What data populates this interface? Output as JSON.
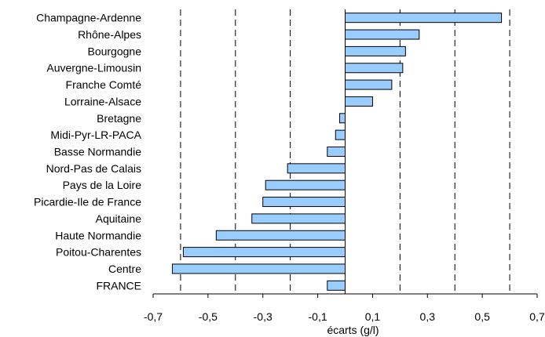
{
  "chart_data": {
    "type": "bar",
    "orientation": "horizontal",
    "categories": [
      "Champagne-Ardenne",
      "Rhône-Alpes",
      "Bourgogne",
      "Auvergne-Limousin",
      "Franche Comté",
      "Lorraine-Alsace",
      "Bretagne",
      "Midi-Pyr-LR-PACA",
      "Basse Normandie",
      "Nord-Pas de Calais",
      "Pays de la Loire",
      "Picardie-Ile de France",
      "Aquitaine",
      "Haute Normandie",
      "Poitou-Charentes",
      "Centre",
      "FRANCE"
    ],
    "values": [
      0.57,
      0.27,
      0.22,
      0.21,
      0.17,
      0.1,
      -0.02,
      -0.035,
      -0.065,
      -0.21,
      -0.29,
      -0.3,
      -0.34,
      -0.47,
      -0.59,
      -0.63,
      -0.065
    ],
    "xlabel": "écarts (g/l)",
    "xlim": [
      -0.7,
      0.7
    ],
    "xticks": [
      "-0,7",
      "-0,5",
      "-0,3",
      "-0,1",
      "0,1",
      "0,3",
      "0,5",
      "0,7"
    ],
    "grid": "vertical dashed every 0.1",
    "colors": {
      "bar_fill": "#99ccff",
      "bar_stroke": "#000000",
      "grid": "#000000"
    }
  }
}
